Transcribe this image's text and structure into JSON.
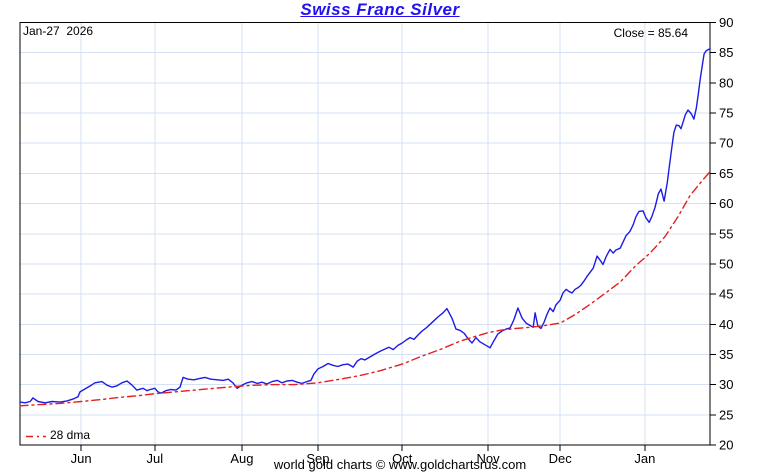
{
  "header": {
    "title": "Swiss Franc Silver"
  },
  "chart": {
    "date_label": "Jan-27  2026",
    "close_label": "Close = 85.64",
    "legend_label": "28 dma",
    "footer": "world gold charts © www.goldchartsrus.com"
  },
  "chart_data": {
    "type": "line",
    "title": "Swiss Franc Silver",
    "subtitle_date": "Jan-27 2026",
    "close": 85.64,
    "ylabel": "",
    "xlabel": "",
    "ylim": [
      20,
      90
    ],
    "y_ticks": [
      20,
      25,
      30,
      35,
      40,
      45,
      50,
      55,
      60,
      65,
      70,
      75,
      80,
      85,
      90
    ],
    "x_range": [
      0,
      176
    ],
    "x_ticks": [
      {
        "label": "Jun",
        "x": 15.6
      },
      {
        "label": "Jul",
        "x": 34.4
      },
      {
        "label": "Aug",
        "x": 56.6
      },
      {
        "label": "Sep",
        "x": 76.0
      },
      {
        "label": "Oct",
        "x": 97.5
      },
      {
        "label": "Nov",
        "x": 119.4
      },
      {
        "label": "Dec",
        "x": 137.8
      },
      {
        "label": "Jan",
        "x": 159.4
      }
    ],
    "grid": true,
    "legend_position": "bottom-left",
    "colors": {
      "title": "#2211ee",
      "price_line": "#1c1ce6",
      "dma_line": "#e81e1e",
      "grid": "#d5e0f2",
      "axis": "#000000",
      "background": "#ffffff",
      "text": "#000000"
    },
    "series": [
      {
        "name": "Swiss Franc Silver price",
        "color": "#1c1ce6",
        "line_style": "solid",
        "points": [
          [
            0,
            27.1
          ],
          [
            1.3,
            27.0
          ],
          [
            2.6,
            27.2
          ],
          [
            3.3,
            27.8
          ],
          [
            4.6,
            27.2
          ],
          [
            6.4,
            27.0
          ],
          [
            8.2,
            27.2
          ],
          [
            10.2,
            27.1
          ],
          [
            12,
            27.3
          ],
          [
            13.5,
            27.6
          ],
          [
            14.8,
            28.0
          ],
          [
            15.3,
            28.8
          ],
          [
            16.6,
            29.3
          ],
          [
            17.9,
            29.8
          ],
          [
            19.1,
            30.3
          ],
          [
            20.9,
            30.5
          ],
          [
            22.2,
            29.9
          ],
          [
            23.5,
            29.6
          ],
          [
            24.7,
            29.8
          ],
          [
            26,
            30.3
          ],
          [
            27.3,
            30.6
          ],
          [
            28.6,
            29.9
          ],
          [
            29.8,
            29.1
          ],
          [
            31.4,
            29.4
          ],
          [
            32.4,
            29.0
          ],
          [
            33.2,
            29.2
          ],
          [
            34.4,
            29.4
          ],
          [
            35.2,
            28.8
          ],
          [
            36,
            28.6
          ],
          [
            37.2,
            29.0
          ],
          [
            38.5,
            29.2
          ],
          [
            39.8,
            29.1
          ],
          [
            40.8,
            29.6
          ],
          [
            41.6,
            31.2
          ],
          [
            42.9,
            30.9
          ],
          [
            44.4,
            30.8
          ],
          [
            45.7,
            31.0
          ],
          [
            47.2,
            31.2
          ],
          [
            48.7,
            30.9
          ],
          [
            50.3,
            30.8
          ],
          [
            51.8,
            30.7
          ],
          [
            53.1,
            30.9
          ],
          [
            54.3,
            30.3
          ],
          [
            55.4,
            29.4
          ],
          [
            56.6,
            29.9
          ],
          [
            57.9,
            30.3
          ],
          [
            59.2,
            30.5
          ],
          [
            60.5,
            30.2
          ],
          [
            61.7,
            30.4
          ],
          [
            63,
            30.1
          ],
          [
            64.3,
            30.5
          ],
          [
            65.6,
            30.7
          ],
          [
            66.8,
            30.3
          ],
          [
            68.1,
            30.6
          ],
          [
            69.4,
            30.7
          ],
          [
            70.7,
            30.4
          ],
          [
            71.9,
            30.2
          ],
          [
            73.2,
            30.5
          ],
          [
            74.2,
            30.7
          ],
          [
            75,
            31.8
          ],
          [
            76,
            32.6
          ],
          [
            77.3,
            33.0
          ],
          [
            78.6,
            33.5
          ],
          [
            79.8,
            33.2
          ],
          [
            81.1,
            33.0
          ],
          [
            82.4,
            33.3
          ],
          [
            83.7,
            33.4
          ],
          [
            85,
            32.9
          ],
          [
            86,
            33.9
          ],
          [
            87,
            34.3
          ],
          [
            88,
            34.1
          ],
          [
            89.3,
            34.6
          ],
          [
            90.6,
            35.1
          ],
          [
            91.8,
            35.5
          ],
          [
            93.1,
            35.9
          ],
          [
            94.1,
            36.2
          ],
          [
            95.2,
            35.8
          ],
          [
            96.4,
            36.5
          ],
          [
            97.5,
            36.9
          ],
          [
            98.5,
            37.4
          ],
          [
            99.5,
            37.8
          ],
          [
            100.5,
            37.5
          ],
          [
            101.5,
            38.2
          ],
          [
            102.6,
            38.9
          ],
          [
            103.6,
            39.4
          ],
          [
            104.6,
            40.0
          ],
          [
            105.6,
            40.6
          ],
          [
            106.6,
            41.2
          ],
          [
            107.9,
            41.9
          ],
          [
            108.9,
            42.6
          ],
          [
            110.2,
            41.0
          ],
          [
            111.2,
            39.2
          ],
          [
            112.2,
            39.0
          ],
          [
            113.3,
            38.5
          ],
          [
            114.3,
            37.6
          ],
          [
            115.3,
            36.9
          ],
          [
            116.3,
            37.8
          ],
          [
            117.3,
            37.1
          ],
          [
            118.6,
            36.6
          ],
          [
            119.9,
            36.1
          ],
          [
            120.9,
            37.3
          ],
          [
            121.9,
            38.4
          ],
          [
            123,
            38.9
          ],
          [
            124,
            39.2
          ],
          [
            125,
            39.4
          ],
          [
            126,
            40.8
          ],
          [
            127,
            42.7
          ],
          [
            128.1,
            41.0
          ],
          [
            129.1,
            40.2
          ],
          [
            130.1,
            39.8
          ],
          [
            130.9,
            39.5
          ],
          [
            131.4,
            41.9
          ],
          [
            132.1,
            39.7
          ],
          [
            132.9,
            39.3
          ],
          [
            133.7,
            40.4
          ],
          [
            134.4,
            41.6
          ],
          [
            135.2,
            42.7
          ],
          [
            136,
            42.1
          ],
          [
            136.7,
            43.2
          ],
          [
            137.8,
            44.0
          ],
          [
            138.5,
            45.2
          ],
          [
            139.3,
            45.8
          ],
          [
            140.1,
            45.4
          ],
          [
            140.8,
            45.2
          ],
          [
            141.6,
            45.8
          ],
          [
            142.4,
            46.1
          ],
          [
            143.1,
            46.5
          ],
          [
            143.9,
            47.2
          ],
          [
            144.6,
            47.9
          ],
          [
            145.4,
            48.6
          ],
          [
            146.2,
            49.3
          ],
          [
            147.2,
            51.3
          ],
          [
            148,
            50.6
          ],
          [
            148.7,
            49.9
          ],
          [
            149.5,
            51.2
          ],
          [
            150.5,
            52.4
          ],
          [
            151.3,
            51.8
          ],
          [
            152,
            52.3
          ],
          [
            153.1,
            52.6
          ],
          [
            153.8,
            53.6
          ],
          [
            154.6,
            54.7
          ],
          [
            155.6,
            55.4
          ],
          [
            156.4,
            56.5
          ],
          [
            157.1,
            57.8
          ],
          [
            157.9,
            58.7
          ],
          [
            158.9,
            58.8
          ],
          [
            159.7,
            57.6
          ],
          [
            160.5,
            56.9
          ],
          [
            161.2,
            57.9
          ],
          [
            162,
            59.4
          ],
          [
            162.8,
            61.6
          ],
          [
            163.5,
            62.4
          ],
          [
            164.3,
            60.4
          ],
          [
            165.1,
            63.5
          ],
          [
            165.8,
            67.0
          ],
          [
            166.3,
            69.5
          ],
          [
            166.8,
            71.8
          ],
          [
            167.4,
            73.0
          ],
          [
            168.1,
            72.9
          ],
          [
            168.6,
            72.4
          ],
          [
            169.1,
            73.4
          ],
          [
            169.7,
            74.7
          ],
          [
            170.4,
            75.5
          ],
          [
            171.2,
            74.9
          ],
          [
            171.9,
            74.0
          ],
          [
            172.5,
            75.8
          ],
          [
            173,
            78.0
          ],
          [
            173.5,
            80.6
          ],
          [
            174,
            82.8
          ],
          [
            174.5,
            84.8
          ],
          [
            175,
            85.3
          ],
          [
            175.5,
            85.5
          ],
          [
            176,
            85.64
          ]
        ]
      },
      {
        "name": "28 dma",
        "color": "#e81e1e",
        "line_style": "dashdot",
        "points": [
          [
            0,
            26.5
          ],
          [
            5.1,
            26.7
          ],
          [
            10.2,
            26.9
          ],
          [
            15.6,
            27.2
          ],
          [
            20.4,
            27.5
          ],
          [
            25.5,
            27.9
          ],
          [
            30.6,
            28.2
          ],
          [
            34.4,
            28.5
          ],
          [
            39.5,
            28.8
          ],
          [
            44.6,
            29.1
          ],
          [
            49.7,
            29.4
          ],
          [
            54.8,
            29.7
          ],
          [
            59.9,
            29.9
          ],
          [
            65,
            30.0
          ],
          [
            70.2,
            30.0
          ],
          [
            76,
            30.3
          ],
          [
            81.6,
            30.9
          ],
          [
            86.7,
            31.5
          ],
          [
            91.8,
            32.3
          ],
          [
            97.5,
            33.4
          ],
          [
            102,
            34.6
          ],
          [
            107.1,
            35.8
          ],
          [
            112.2,
            37.2
          ],
          [
            116.1,
            38.0
          ],
          [
            119.4,
            38.6
          ],
          [
            122.4,
            39.0
          ],
          [
            126.3,
            39.3
          ],
          [
            130.1,
            39.5
          ],
          [
            133.9,
            39.8
          ],
          [
            137.8,
            40.2
          ],
          [
            141.6,
            41.6
          ],
          [
            145.4,
            43.3
          ],
          [
            149.2,
            45.1
          ],
          [
            153.1,
            47.0
          ],
          [
            156.9,
            49.6
          ],
          [
            160.7,
            51.8
          ],
          [
            164.5,
            54.5
          ],
          [
            167.8,
            57.8
          ],
          [
            170.9,
            61.3
          ],
          [
            173.5,
            63.4
          ],
          [
            176,
            65.3
          ]
        ]
      }
    ]
  }
}
